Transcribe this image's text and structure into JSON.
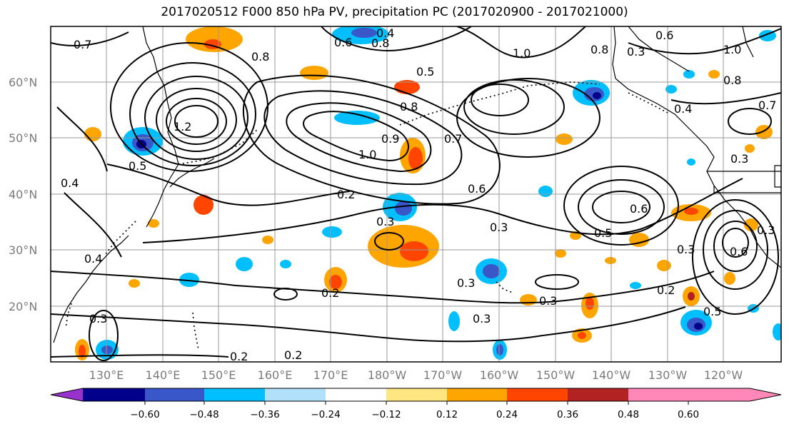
{
  "title": "2017020512 F000 850 hPa PV, precipitation PC (2017020900 - 2017021000)",
  "map": {
    "lat_labels": [
      "60°N",
      "50°N",
      "40°N",
      "30°N",
      "20°N"
    ],
    "lon_labels": [
      "130°E",
      "140°E",
      "150°E",
      "160°E",
      "170°E",
      "180°W",
      "170°W",
      "160°W",
      "150°W",
      "140°W",
      "130°W",
      "120°W"
    ],
    "contour_labels": [
      "0.7",
      "0.8",
      "0.6",
      "0.4",
      "0.8",
      "0.5",
      "1.0",
      "0.8",
      "0.3",
      "0.6",
      "1.0",
      "0.8",
      "1.2",
      "0.5",
      "0.8",
      "0.7",
      "0.4",
      "0.7",
      "1.0",
      "0.9",
      "0.3",
      "0.4",
      "0.6",
      "0.2",
      "0.3",
      "0.6",
      "0.5",
      "0.4",
      "0.3",
      "0.3",
      "0.6",
      "0.3",
      "0.3",
      "0.2",
      "0.3",
      "0.3",
      "0.2",
      "0.5",
      "0.2",
      "0.2",
      "0.3"
    ]
  },
  "colorbar": {
    "ticks": [
      "−0.60",
      "−0.48",
      "−0.36",
      "−0.24",
      "−0.12",
      "0.12",
      "0.24",
      "0.36",
      "0.48",
      "0.60"
    ],
    "colors": [
      "#9932cc",
      "#00008b",
      "#3a57c9",
      "#00bfff",
      "#b0e0fa",
      "#ffffff",
      "#ffe680",
      "#ffa500",
      "#ff4500",
      "#b22222",
      "#ff88b8"
    ]
  }
}
